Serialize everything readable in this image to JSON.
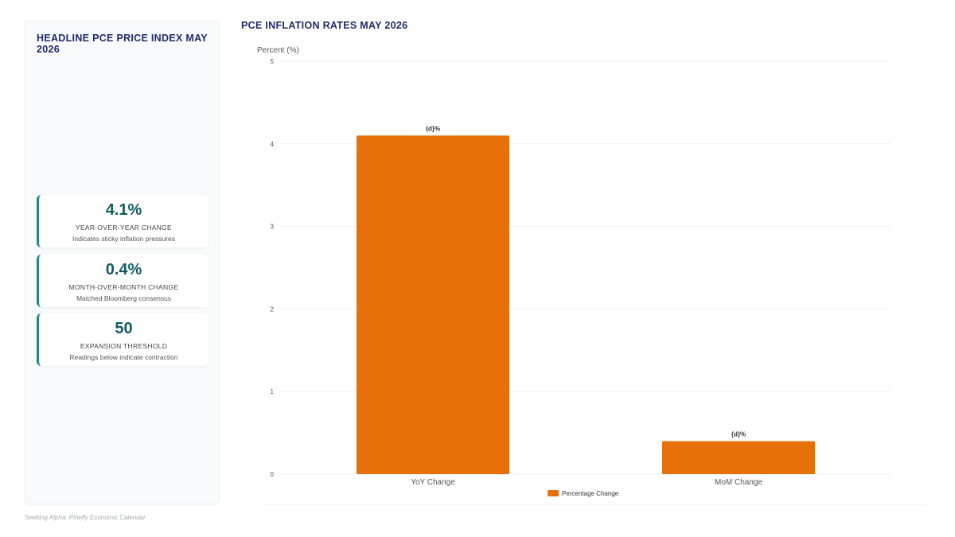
{
  "sidebar": {
    "title": "HEADLINE PCE PRICE INDEX MAY 2026",
    "cards": [
      {
        "value": "4.1%",
        "label": "YEAR-OVER-YEAR CHANGE",
        "description": "Indicates sticky inflation pressures"
      },
      {
        "value": "0.4%",
        "label": "MONTH-OVER-MONTH CHANGE",
        "description": "Matched Bloomberg consensus"
      },
      {
        "value": "50",
        "label": "EXPANSION THRESHOLD",
        "description": "Readings below indicate contraction"
      }
    ],
    "accent_color": "#1a8a87",
    "value_color": "#145c62"
  },
  "chart_data": {
    "type": "bar",
    "title": "PCE INFLATION RATES MAY 2026",
    "ylabel": "Percent (%)",
    "xlabel": "",
    "categories": [
      "YoY Change",
      "MoM Change"
    ],
    "series": [
      {
        "name": "Percentage Change",
        "values": [
          4.1,
          0.4
        ],
        "color": "#e8700a"
      }
    ],
    "data_labels": [
      "{d}%",
      "{d}%"
    ],
    "ylim": [
      0,
      5
    ],
    "yticks": [
      "0",
      "1",
      "2",
      "3",
      "4",
      "5"
    ],
    "grid": true,
    "legend": "bottom-center"
  },
  "footer": {
    "source": "Seeking Alpha, Pinelfy Economic Calendar"
  }
}
